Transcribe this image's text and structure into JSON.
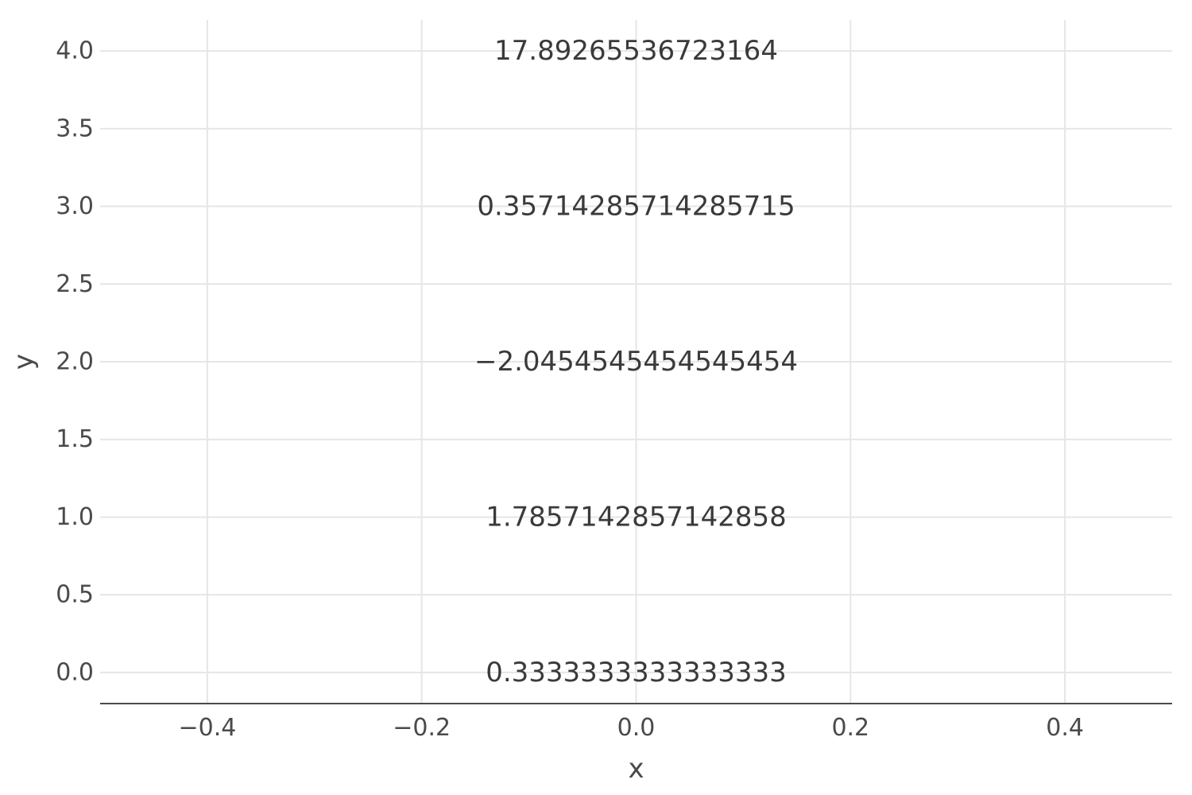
{
  "chart_data": {
    "type": "scatter",
    "title": "",
    "xlabel": "x",
    "ylabel": "y",
    "xlim": [
      -0.5,
      0.5
    ],
    "ylim": [
      -0.2,
      4.2
    ],
    "x_ticks": [
      "−0.4",
      "−0.2",
      "0.0",
      "0.2",
      "0.4"
    ],
    "y_ticks": [
      "0.0",
      "0.5",
      "1.0",
      "1.5",
      "2.0",
      "2.5",
      "3.0",
      "3.5",
      "4.0"
    ],
    "grid": true,
    "points": [
      {
        "x": 0,
        "y": 0,
        "label": "0.3333333333333333"
      },
      {
        "x": 0,
        "y": 1,
        "label": "1.7857142857142858"
      },
      {
        "x": 0,
        "y": 2,
        "label": "−2.0454545454545454"
      },
      {
        "x": 0,
        "y": 3,
        "label": "0.35714285714285715"
      },
      {
        "x": 0,
        "y": 4,
        "label": "17.89265536723164"
      }
    ]
  }
}
